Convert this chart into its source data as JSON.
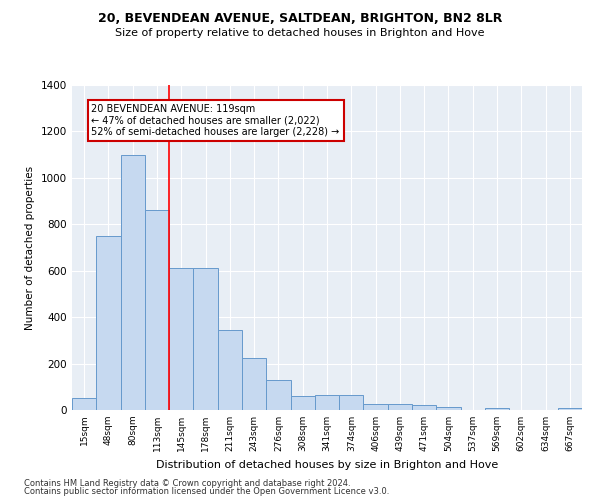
{
  "title1": "20, BEVENDEAN AVENUE, SALTDEAN, BRIGHTON, BN2 8LR",
  "title2": "Size of property relative to detached houses in Brighton and Hove",
  "xlabel": "Distribution of detached houses by size in Brighton and Hove",
  "ylabel": "Number of detached properties",
  "categories": [
    "15sqm",
    "48sqm",
    "80sqm",
    "113sqm",
    "145sqm",
    "178sqm",
    "211sqm",
    "243sqm",
    "276sqm",
    "308sqm",
    "341sqm",
    "374sqm",
    "406sqm",
    "439sqm",
    "471sqm",
    "504sqm",
    "537sqm",
    "569sqm",
    "602sqm",
    "634sqm",
    "667sqm"
  ],
  "values": [
    50,
    750,
    1100,
    860,
    610,
    610,
    345,
    225,
    130,
    60,
    65,
    65,
    25,
    25,
    20,
    15,
    0,
    10,
    0,
    0,
    10
  ],
  "bar_color": "#c6d9f0",
  "bar_edge_color": "#6699cc",
  "red_line_x": 3.5,
  "annotation_line1": "20 BEVENDEAN AVENUE: 119sqm",
  "annotation_line2": "← 47% of detached houses are smaller (2,022)",
  "annotation_line3": "52% of semi-detached houses are larger (2,228) →",
  "annotation_box_color": "#ffffff",
  "annotation_box_edge": "#cc0000",
  "footnote1": "Contains HM Land Registry data © Crown copyright and database right 2024.",
  "footnote2": "Contains public sector information licensed under the Open Government Licence v3.0.",
  "bg_color": "#e8eef5",
  "ylim": [
    0,
    1400
  ],
  "yticks": [
    0,
    200,
    400,
    600,
    800,
    1000,
    1200,
    1400
  ]
}
